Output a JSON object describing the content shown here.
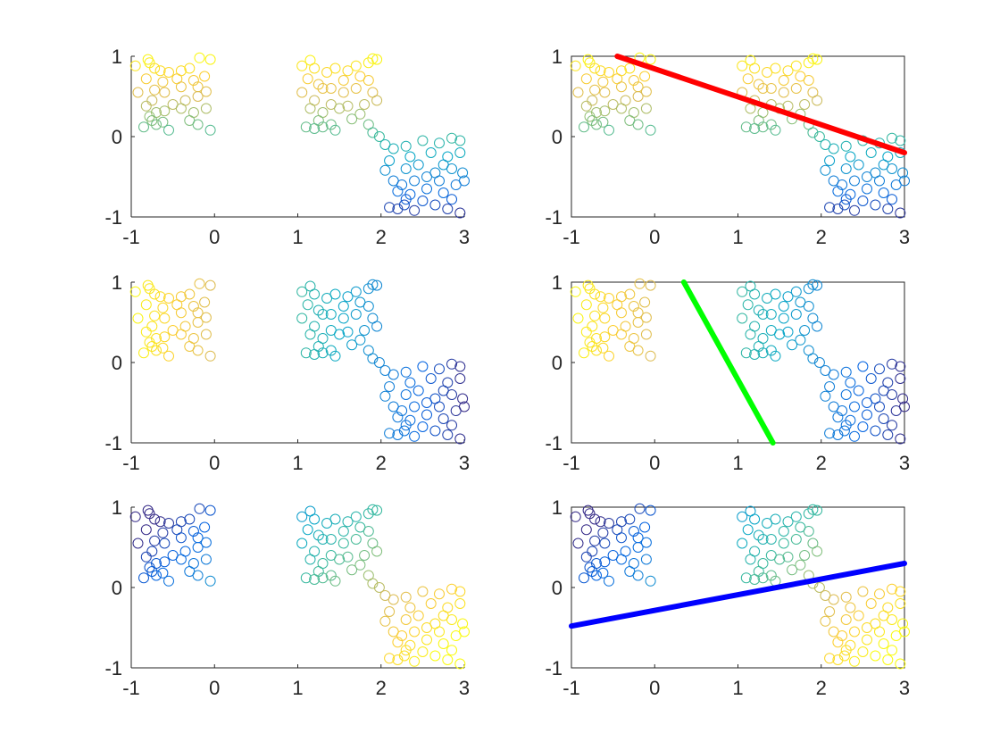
{
  "chart_data": [
    {
      "type": "scatter",
      "panel": "row1-left",
      "title": "",
      "xlabel": "",
      "ylabel": "",
      "xlim": [
        -1,
        3
      ],
      "ylim": [
        -1,
        1
      ],
      "xticks": [
        -1,
        0,
        1,
        2,
        3
      ],
      "yticks": [
        -1,
        0,
        1
      ],
      "marker": "open-circle",
      "colormap": "parula",
      "color_rule": "y_value",
      "clusters": [
        "cluster_a",
        "cluster_b",
        "cluster_c"
      ],
      "line": null
    },
    {
      "type": "scatter",
      "panel": "row1-right",
      "title": "",
      "xlabel": "",
      "ylabel": "",
      "xlim": [
        -1,
        3
      ],
      "ylim": [
        -1,
        1
      ],
      "xticks": [
        -1,
        0,
        1,
        2,
        3
      ],
      "yticks": [
        -1,
        0,
        1
      ],
      "marker": "open-circle",
      "colormap": "parula",
      "color_rule": "y_value",
      "clusters": [
        "cluster_a",
        "cluster_b",
        "cluster_c"
      ],
      "line": {
        "x": [
          -0.45,
          3.0
        ],
        "y": [
          1.0,
          -0.2
        ],
        "color": "#ff0000"
      }
    },
    {
      "type": "scatter",
      "panel": "row2-left",
      "title": "",
      "xlabel": "",
      "ylabel": "",
      "xlim": [
        -1,
        3
      ],
      "ylim": [
        -1,
        1
      ],
      "xticks": [
        -1,
        0,
        1,
        2,
        3
      ],
      "yticks": [
        -1,
        0,
        1
      ],
      "marker": "open-circle",
      "colormap": "parula",
      "color_rule": "x_value_inverted",
      "clusters": [
        "cluster_a",
        "cluster_b",
        "cluster_c"
      ],
      "line": null
    },
    {
      "type": "scatter",
      "panel": "row2-right",
      "title": "",
      "xlabel": "",
      "ylabel": "",
      "xlim": [
        -1,
        3
      ],
      "ylim": [
        -1,
        1
      ],
      "xticks": [
        -1,
        0,
        1,
        2,
        3
      ],
      "yticks": [
        -1,
        0,
        1
      ],
      "marker": "open-circle",
      "colormap": "parula",
      "color_rule": "x_value_inverted",
      "clusters": [
        "cluster_a",
        "cluster_b",
        "cluster_c"
      ],
      "line": {
        "x": [
          0.35,
          1.42
        ],
        "y": [
          1.0,
          -1.0
        ],
        "color": "#00ff00"
      }
    },
    {
      "type": "scatter",
      "panel": "row3-left",
      "title": "",
      "xlabel": "",
      "ylabel": "",
      "xlim": [
        -1,
        3
      ],
      "ylim": [
        -1,
        1
      ],
      "xticks": [
        -1,
        0,
        1,
        2,
        3
      ],
      "yticks": [
        -1,
        0,
        1
      ],
      "marker": "open-circle",
      "colormap": "parula",
      "color_rule": "x_minus_y",
      "clusters": [
        "cluster_a",
        "cluster_b",
        "cluster_c"
      ],
      "line": null
    },
    {
      "type": "scatter",
      "panel": "row3-right",
      "title": "",
      "xlabel": "",
      "ylabel": "",
      "xlim": [
        -1,
        3
      ],
      "ylim": [
        -1,
        1
      ],
      "xticks": [
        -1,
        0,
        1,
        2,
        3
      ],
      "yticks": [
        -1,
        0,
        1
      ],
      "marker": "open-circle",
      "colormap": "parula",
      "color_rule": "x_minus_y",
      "clusters": [
        "cluster_a",
        "cluster_b",
        "cluster_c"
      ],
      "line": {
        "x": [
          -1.0,
          3.0
        ],
        "y": [
          -0.48,
          0.3
        ],
        "color": "#0000ff"
      }
    }
  ],
  "points": {
    "cluster_a": [
      [
        -0.95,
        0.88
      ],
      [
        -0.8,
        0.96
      ],
      [
        -0.78,
        0.92
      ],
      [
        -0.72,
        0.85
      ],
      [
        -0.65,
        0.82
      ],
      [
        -0.55,
        0.8
      ],
      [
        -0.4,
        0.82
      ],
      [
        -0.3,
        0.85
      ],
      [
        -0.18,
        0.98
      ],
      [
        -0.05,
        0.96
      ],
      [
        -0.82,
        0.72
      ],
      [
        -0.62,
        0.68
      ],
      [
        -0.45,
        0.72
      ],
      [
        -0.25,
        0.7
      ],
      [
        -0.12,
        0.75
      ],
      [
        -0.92,
        0.55
      ],
      [
        -0.72,
        0.58
      ],
      [
        -0.6,
        0.55
      ],
      [
        -0.4,
        0.62
      ],
      [
        -0.2,
        0.62
      ],
      [
        -0.1,
        0.56
      ],
      [
        -0.75,
        0.45
      ],
      [
        -0.5,
        0.4
      ],
      [
        -0.35,
        0.45
      ],
      [
        -0.2,
        0.5
      ],
      [
        -0.82,
        0.38
      ],
      [
        -0.7,
        0.3
      ],
      [
        -0.78,
        0.25
      ],
      [
        -0.6,
        0.32
      ],
      [
        -0.4,
        0.35
      ],
      [
        -0.25,
        0.3
      ],
      [
        -0.1,
        0.35
      ],
      [
        -0.85,
        0.12
      ],
      [
        -0.7,
        0.15
      ],
      [
        -0.62,
        0.18
      ],
      [
        -0.55,
        0.08
      ],
      [
        -0.75,
        0.2
      ],
      [
        -0.3,
        0.2
      ],
      [
        -0.2,
        0.15
      ],
      [
        -0.05,
        0.08
      ]
    ],
    "cluster_b": [
      [
        1.05,
        0.88
      ],
      [
        1.15,
        0.95
      ],
      [
        1.2,
        0.85
      ],
      [
        1.35,
        0.8
      ],
      [
        1.45,
        0.85
      ],
      [
        1.6,
        0.82
      ],
      [
        1.7,
        0.88
      ],
      [
        1.85,
        0.92
      ],
      [
        1.9,
        0.97
      ],
      [
        1.95,
        0.96
      ],
      [
        1.12,
        0.72
      ],
      [
        1.25,
        0.65
      ],
      [
        1.4,
        0.6
      ],
      [
        1.55,
        0.7
      ],
      [
        1.75,
        0.75
      ],
      [
        1.85,
        0.7
      ],
      [
        1.05,
        0.55
      ],
      [
        1.3,
        0.6
      ],
      [
        1.55,
        0.55
      ],
      [
        1.7,
        0.6
      ],
      [
        1.9,
        0.55
      ],
      [
        1.2,
        0.45
      ],
      [
        1.4,
        0.4
      ],
      [
        1.6,
        0.38
      ],
      [
        1.8,
        0.4
      ],
      [
        1.95,
        0.45
      ],
      [
        1.15,
        0.35
      ],
      [
        1.3,
        0.3
      ],
      [
        1.5,
        0.35
      ],
      [
        1.75,
        0.28
      ],
      [
        1.25,
        0.2
      ],
      [
        1.4,
        0.15
      ],
      [
        1.1,
        0.12
      ],
      [
        1.2,
        0.1
      ],
      [
        1.3,
        0.12
      ],
      [
        1.45,
        0.08
      ],
      [
        1.65,
        0.22
      ],
      [
        1.85,
        0.15
      ],
      [
        1.9,
        0.05
      ],
      [
        1.98,
        0.0
      ]
    ],
    "cluster_c": [
      [
        2.05,
        -0.1
      ],
      [
        2.15,
        -0.15
      ],
      [
        2.3,
        -0.12
      ],
      [
        2.5,
        -0.05
      ],
      [
        2.7,
        -0.08
      ],
      [
        2.85,
        -0.02
      ],
      [
        2.95,
        -0.05
      ],
      [
        2.1,
        -0.3
      ],
      [
        2.35,
        -0.25
      ],
      [
        2.6,
        -0.2
      ],
      [
        2.8,
        -0.25
      ],
      [
        2.95,
        -0.2
      ],
      [
        2.05,
        -0.42
      ],
      [
        2.3,
        -0.4
      ],
      [
        2.45,
        -0.35
      ],
      [
        2.65,
        -0.45
      ],
      [
        2.85,
        -0.4
      ],
      [
        2.98,
        -0.45
      ],
      [
        2.15,
        -0.55
      ],
      [
        2.25,
        -0.6
      ],
      [
        2.4,
        -0.55
      ],
      [
        2.55,
        -0.65
      ],
      [
        2.7,
        -0.55
      ],
      [
        2.9,
        -0.6
      ],
      [
        3.0,
        -0.55
      ],
      [
        2.2,
        -0.68
      ],
      [
        2.35,
        -0.72
      ],
      [
        2.5,
        -0.8
      ],
      [
        2.75,
        -0.7
      ],
      [
        2.85,
        -0.78
      ],
      [
        2.1,
        -0.88
      ],
      [
        2.2,
        -0.9
      ],
      [
        2.28,
        -0.85
      ],
      [
        2.4,
        -0.92
      ],
      [
        2.65,
        -0.85
      ],
      [
        2.8,
        -0.9
      ],
      [
        2.95,
        -0.95
      ],
      [
        2.3,
        -0.78
      ],
      [
        2.55,
        -0.5
      ],
      [
        2.75,
        -0.35
      ]
    ]
  },
  "colors": {
    "axis": "#262626",
    "background": "#ffffff",
    "parula_stops": [
      "#352a87",
      "#0363e1",
      "#1485d4",
      "#06a7c6",
      "#38b99e",
      "#92bf73",
      "#d9ba56",
      "#fcce2e",
      "#f9fb0e"
    ]
  }
}
